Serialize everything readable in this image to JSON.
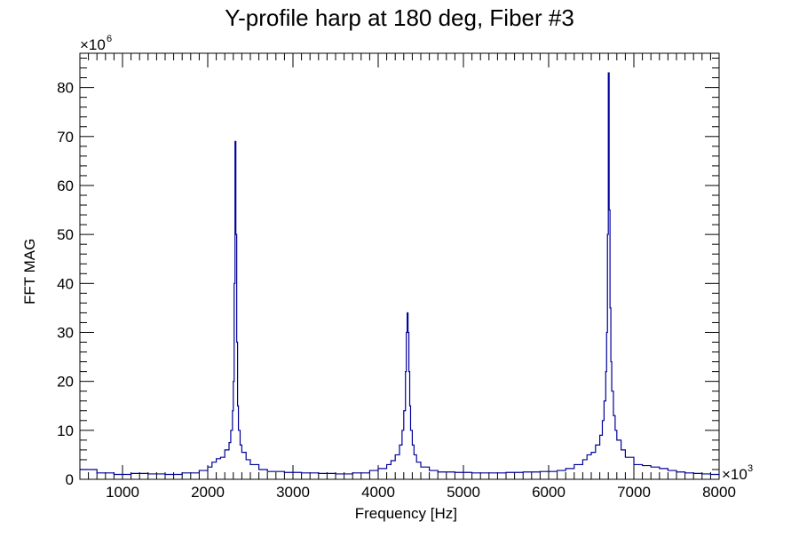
{
  "chart_data": {
    "type": "line",
    "title": "Y-profile harp at 180 deg, Fiber #3",
    "xlabel": "Frequency [Hz]",
    "ylabel": "FFT MAG",
    "x_multiplier": {
      "base": "×10",
      "exp": "3"
    },
    "y_multiplier": {
      "base": "×10",
      "exp": "6"
    },
    "xlim": [
      500,
      8000
    ],
    "ylim": [
      0,
      87
    ],
    "x_ticks": [
      1000,
      2000,
      3000,
      4000,
      5000,
      6000,
      7000,
      8000
    ],
    "x_tick_labels": [
      "1000",
      "2000",
      "3000",
      "4000",
      "5000",
      "6000",
      "7000",
      "8000"
    ],
    "y_ticks": [
      0,
      10,
      20,
      30,
      40,
      50,
      60,
      70,
      80
    ],
    "y_tick_labels": [
      "0",
      "10",
      "20",
      "30",
      "40",
      "50",
      "60",
      "70",
      "80"
    ],
    "grid": false,
    "legend": "none",
    "line_color": "#000099",
    "series": [
      {
        "x": [
          500,
          700,
          900,
          1100,
          1300,
          1500,
          1700,
          1900,
          2000,
          2050,
          2100,
          2150,
          2200,
          2250,
          2270,
          2290,
          2300,
          2310,
          2320,
          2330,
          2340,
          2350,
          2360,
          2380,
          2400,
          2450,
          2500,
          2600,
          2700,
          2900,
          3100,
          3300,
          3500,
          3700,
          3900,
          4000,
          4100,
          4150,
          4200,
          4250,
          4280,
          4300,
          4320,
          4330,
          4340,
          4350,
          4360,
          4370,
          4380,
          4400,
          4420,
          4450,
          4500,
          4600,
          4700,
          4900,
          5100,
          5300,
          5500,
          5700,
          5900,
          6100,
          6200,
          6300,
          6400,
          6450,
          6500,
          6550,
          6600,
          6630,
          6650,
          6670,
          6680,
          6690,
          6700,
          6710,
          6720,
          6730,
          6740,
          6760,
          6780,
          6800,
          6850,
          6900,
          7000,
          7100,
          7200,
          7300,
          7400,
          7500,
          7600,
          7700,
          7800,
          7900,
          8000
        ],
        "y": [
          2.0,
          1.3,
          1.0,
          1.2,
          1.1,
          1.0,
          1.3,
          1.8,
          2.5,
          3.5,
          4.2,
          4.5,
          6.0,
          7.5,
          10.0,
          14.0,
          20.0,
          40.0,
          69.0,
          50.0,
          28.0,
          15.0,
          10.0,
          7.0,
          5.5,
          4.0,
          3.0,
          2.0,
          1.6,
          1.4,
          1.3,
          1.2,
          1.1,
          1.3,
          1.8,
          2.2,
          3.0,
          3.8,
          5.0,
          7.0,
          10.0,
          14.0,
          22.0,
          30.0,
          34.0,
          30.0,
          22.0,
          15.0,
          10.0,
          7.0,
          5.0,
          3.5,
          2.5,
          1.8,
          1.5,
          1.4,
          1.3,
          1.3,
          1.4,
          1.5,
          1.6,
          1.8,
          2.2,
          3.0,
          4.0,
          5.0,
          5.5,
          7.0,
          9.0,
          12.0,
          16.0,
          22.0,
          30.0,
          50.0,
          83.0,
          55.0,
          35.0,
          24.0,
          18.0,
          13.0,
          10.0,
          8.0,
          6.0,
          4.5,
          3.0,
          2.8,
          2.5,
          2.2,
          1.8,
          1.5,
          1.3,
          1.2,
          1.1,
          1.0,
          0.9
        ]
      }
    ]
  }
}
